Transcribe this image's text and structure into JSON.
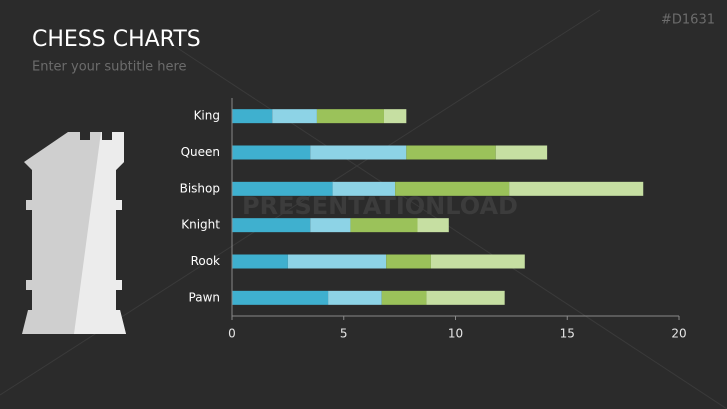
{
  "title": "CHESS CHARTS",
  "subtitle": "Enter your subtitle here",
  "slide_id": "#D1631",
  "watermark": "PRESENTATIONLOAD",
  "chart_data": {
    "type": "stacked-bar-horizontal",
    "categories": [
      "King",
      "Queen",
      "Bishop",
      "Knight",
      "Rook",
      "Pawn"
    ],
    "series": [
      {
        "color": "#3fb0cf",
        "values": [
          1.8,
          3.5,
          4.5,
          3.5,
          2.5,
          4.3
        ]
      },
      {
        "color": "#8dd3e6",
        "values": [
          2.0,
          4.3,
          2.8,
          1.8,
          4.4,
          2.4
        ]
      },
      {
        "color": "#9bc25a",
        "values": [
          3.0,
          4.0,
          5.1,
          3.0,
          2.0,
          2.0
        ]
      },
      {
        "color": "#c6dfa2",
        "values": [
          1.0,
          2.3,
          6.0,
          1.4,
          4.2,
          3.5
        ]
      }
    ],
    "xlim": [
      0,
      20
    ],
    "xticks": [
      0,
      5,
      10,
      15,
      20
    ],
    "grid": false
  }
}
